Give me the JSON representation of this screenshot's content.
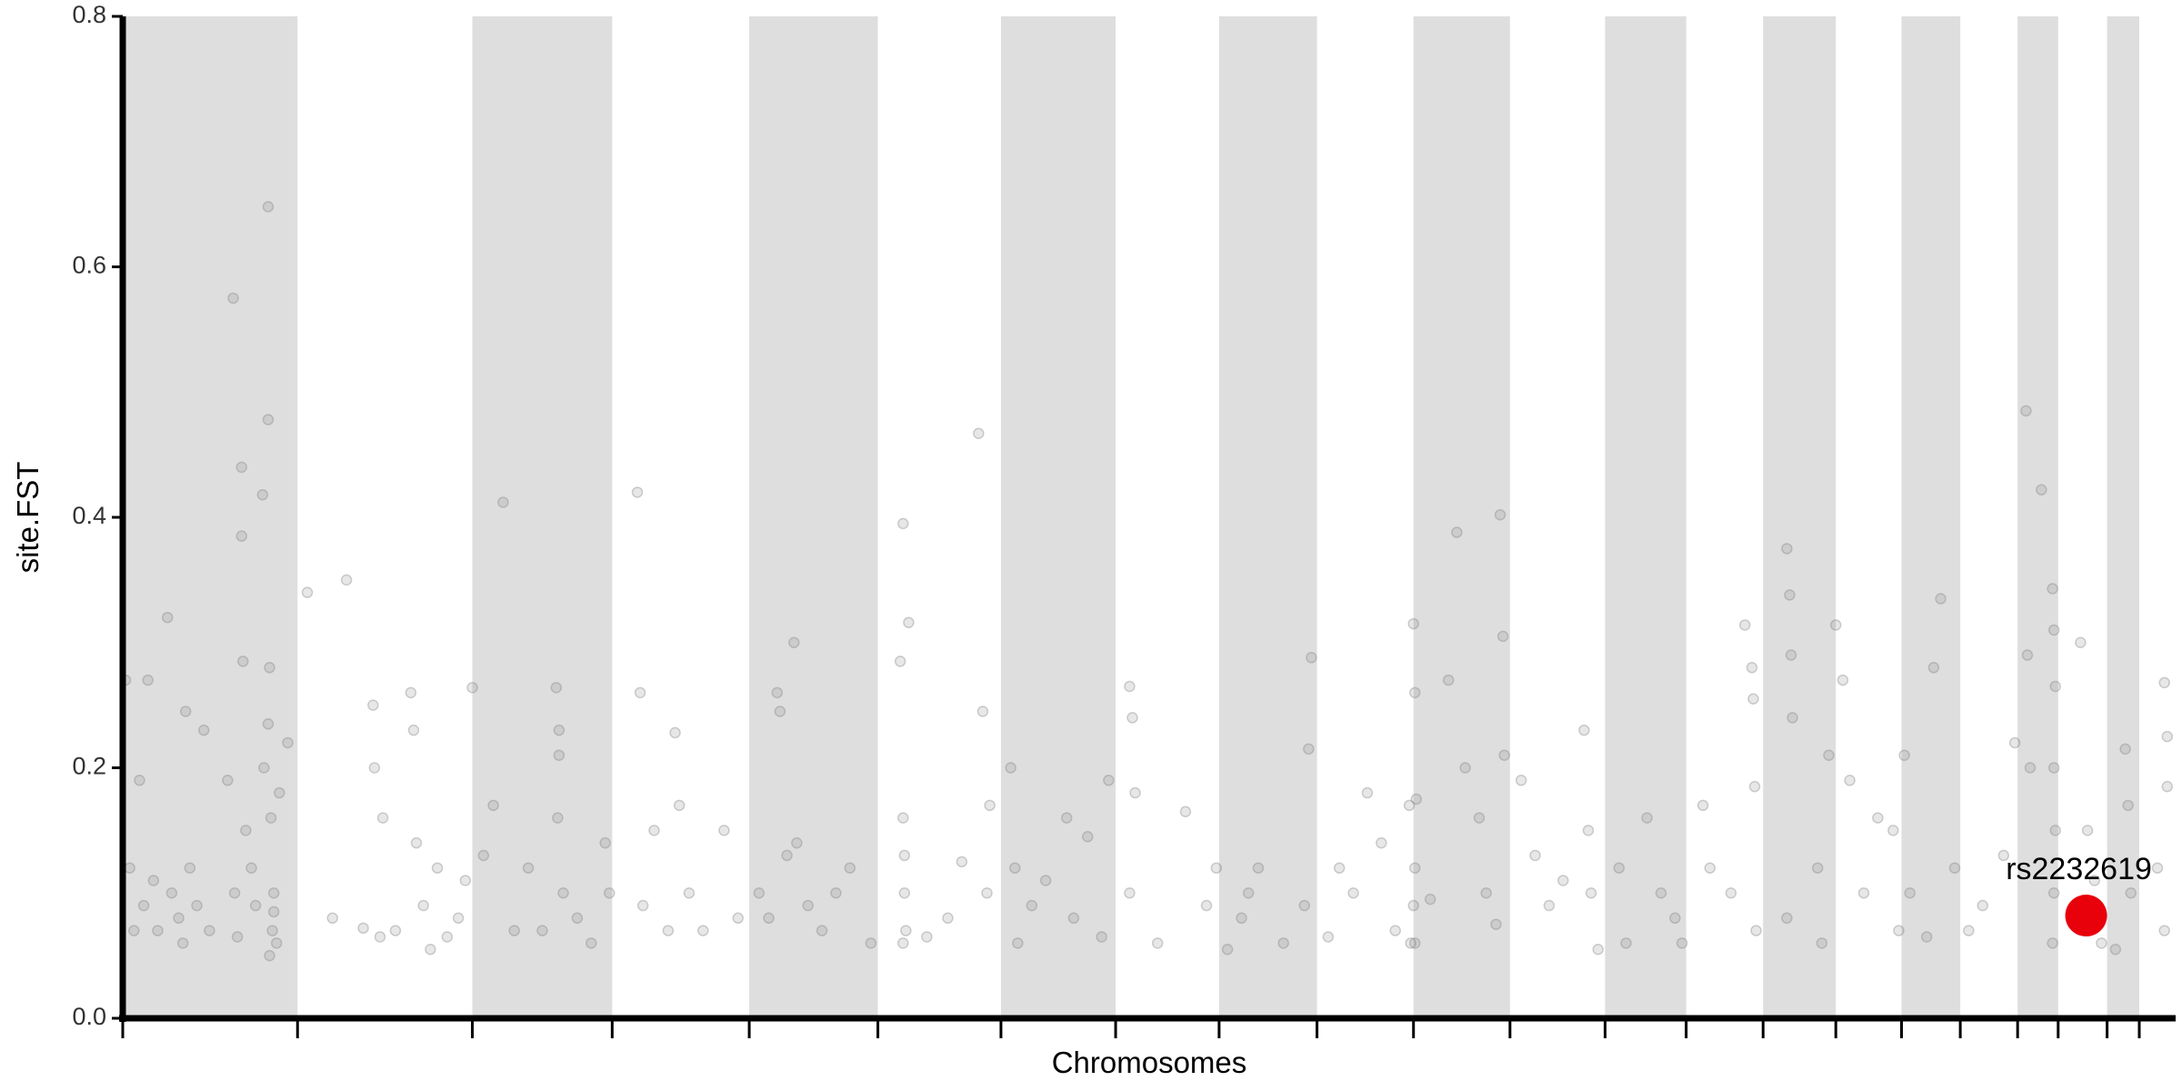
{
  "chart_data": {
    "type": "scatter",
    "x_label": "Chromosomes",
    "y_label": "site.FST",
    "xlim": [
      0,
      1468
    ],
    "ylim": [
      0,
      0.8
    ],
    "yticks": [
      {
        "value": 0,
        "label": "0.0"
      },
      0.2,
      0.4,
      0.6,
      0.8
    ],
    "chromosome_bounds": [
      0,
      125,
      250,
      350,
      448,
      540,
      628,
      710,
      784,
      854,
      923,
      992,
      1060,
      1118,
      1173,
      1225,
      1272,
      1314,
      1355,
      1384,
      1419,
      1442,
      1468
    ],
    "band_color": "#dedede",
    "color": "#7a7a7a",
    "x": [
      2,
      5,
      8,
      12,
      15,
      18,
      22,
      25,
      32,
      35,
      40,
      43,
      45,
      48,
      53,
      58,
      62,
      75,
      79,
      80,
      82,
      85,
      85,
      86,
      88,
      92,
      95,
      100,
      101,
      104,
      104,
      104,
      105,
      106,
      107,
      108,
      110,
      112,
      118,
      108,
      105,
      132,
      160,
      150,
      172,
      179,
      180,
      184,
      186,
      195,
      206,
      208,
      210,
      215,
      220,
      225,
      232,
      240,
      245,
      250,
      258,
      265,
      272,
      280,
      290,
      300,
      310,
      312,
      312,
      311,
      315,
      325,
      335,
      345,
      348,
      368,
      370,
      372,
      380,
      390,
      395,
      398,
      405,
      415,
      430,
      440,
      455,
      462,
      468,
      470,
      475,
      480,
      482,
      490,
      500,
      510,
      520,
      535,
      556,
      558,
      558,
      559,
      559,
      560,
      558,
      562,
      575,
      590,
      600,
      612,
      615,
      620,
      618,
      635,
      638,
      640,
      650,
      660,
      675,
      680,
      690,
      700,
      705,
      720,
      722,
      724,
      720,
      740,
      760,
      775,
      782,
      790,
      800,
      805,
      812,
      830,
      850,
      848,
      845,
      862,
      870,
      880,
      890,
      900,
      910,
      920,
      921,
      923,
      924,
      925,
      924,
      923,
      924,
      935,
      948,
      954,
      960,
      970,
      975,
      985,
      987,
      988,
      982,
      1000,
      1010,
      1020,
      1030,
      1045,
      1048,
      1050,
      1055,
      1070,
      1075,
      1090,
      1100,
      1110,
      1115,
      1130,
      1135,
      1150,
      1165,
      1166,
      1167,
      1168,
      1160,
      1190,
      1192,
      1193,
      1194,
      1190,
      1212,
      1220,
      1215,
      1225,
      1230,
      1235,
      1245,
      1255,
      1270,
      1266,
      1274,
      1278,
      1290,
      1300,
      1295,
      1310,
      1320,
      1330,
      1345,
      1353,
      1361,
      1362,
      1364,
      1372,
      1380,
      1381,
      1382,
      1381,
      1382,
      1381,
      1380,
      1400,
      1405,
      1410,
      1415,
      1425,
      1432,
      1434,
      1436,
      1455,
      1460,
      1462,
      1462,
      1460
    ],
    "y": [
      0.27,
      0.12,
      0.07,
      0.19,
      0.09,
      0.27,
      0.11,
      0.07,
      0.32,
      0.1,
      0.08,
      0.06,
      0.245,
      0.12,
      0.09,
      0.23,
      0.07,
      0.19,
      0.575,
      0.1,
      0.065,
      0.44,
      0.385,
      0.285,
      0.15,
      0.12,
      0.09,
      0.418,
      0.2,
      0.648,
      0.478,
      0.235,
      0.28,
      0.16,
      0.07,
      0.1,
      0.06,
      0.18,
      0.22,
      0.085,
      0.05,
      0.34,
      0.35,
      0.08,
      0.072,
      0.25,
      0.2,
      0.065,
      0.16,
      0.07,
      0.26,
      0.23,
      0.14,
      0.09,
      0.055,
      0.12,
      0.065,
      0.08,
      0.11,
      0.264,
      0.13,
      0.17,
      0.412,
      0.07,
      0.12,
      0.07,
      0.264,
      0.23,
      0.21,
      0.16,
      0.1,
      0.08,
      0.06,
      0.14,
      0.1,
      0.42,
      0.26,
      0.09,
      0.15,
      0.07,
      0.228,
      0.17,
      0.1,
      0.07,
      0.15,
      0.08,
      0.1,
      0.08,
      0.26,
      0.245,
      0.13,
      0.3,
      0.14,
      0.09,
      0.07,
      0.1,
      0.12,
      0.06,
      0.285,
      0.395,
      0.16,
      0.13,
      0.1,
      0.07,
      0.06,
      0.316,
      0.065,
      0.08,
      0.125,
      0.467,
      0.245,
      0.17,
      0.1,
      0.2,
      0.12,
      0.06,
      0.09,
      0.11,
      0.16,
      0.08,
      0.145,
      0.065,
      0.19,
      0.265,
      0.24,
      0.18,
      0.1,
      0.06,
      0.165,
      0.09,
      0.12,
      0.055,
      0.08,
      0.1,
      0.12,
      0.06,
      0.288,
      0.215,
      0.09,
      0.065,
      0.12,
      0.1,
      0.18,
      0.14,
      0.07,
      0.17,
      0.06,
      0.315,
      0.26,
      0.175,
      0.12,
      0.09,
      0.06,
      0.095,
      0.27,
      0.388,
      0.2,
      0.16,
      0.1,
      0.402,
      0.305,
      0.21,
      0.075,
      0.19,
      0.13,
      0.09,
      0.11,
      0.23,
      0.15,
      0.1,
      0.055,
      0.12,
      0.06,
      0.16,
      0.1,
      0.08,
      0.06,
      0.17,
      0.12,
      0.1,
      0.28,
      0.255,
      0.185,
      0.07,
      0.314,
      0.375,
      0.338,
      0.29,
      0.24,
      0.08,
      0.12,
      0.21,
      0.06,
      0.314,
      0.27,
      0.19,
      0.1,
      0.16,
      0.07,
      0.15,
      0.21,
      0.1,
      0.065,
      0.335,
      0.28,
      0.12,
      0.07,
      0.09,
      0.13,
      0.22,
      0.485,
      0.29,
      0.2,
      0.422,
      0.343,
      0.31,
      0.265,
      0.2,
      0.15,
      0.1,
      0.06,
      0.3,
      0.15,
      0.11,
      0.06,
      0.055,
      0.215,
      0.17,
      0.1,
      0.12,
      0.268,
      0.225,
      0.185,
      0.07
    ],
    "highlight": {
      "label": "rs2232619",
      "x": 1404,
      "y": 0.082,
      "color": "#e8000b"
    }
  }
}
